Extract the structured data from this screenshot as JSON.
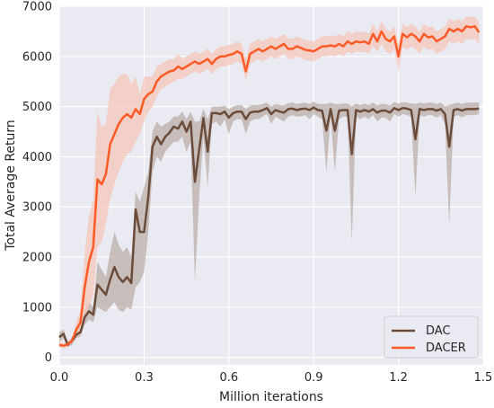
{
  "chart_data": {
    "type": "line",
    "xlabel": "Million iterations",
    "ylabel": "Total Average Return",
    "xlim": [
      0,
      1.5
    ],
    "ylim": [
      -150,
      7000
    ],
    "xticks": [
      "0.0",
      "0.3",
      "0.6",
      "0.9",
      "1.2",
      "1.5"
    ],
    "yticks": [
      "0",
      "1000",
      "2000",
      "3000",
      "4000",
      "5000",
      "6000",
      "7000"
    ],
    "grid": true,
    "legend_position": "bottom-right",
    "background": "#eaeaf2",
    "series": [
      {
        "name": "DAC",
        "color": "#6b4c3b",
        "band_color": "#b8a9a4",
        "x": [
          0.0,
          0.015,
          0.03,
          0.045,
          0.06,
          0.075,
          0.09,
          0.105,
          0.12,
          0.135,
          0.15,
          0.165,
          0.18,
          0.195,
          0.21,
          0.225,
          0.24,
          0.255,
          0.27,
          0.285,
          0.3,
          0.315,
          0.33,
          0.345,
          0.36,
          0.375,
          0.39,
          0.405,
          0.42,
          0.435,
          0.45,
          0.465,
          0.48,
          0.495,
          0.51,
          0.525,
          0.54,
          0.555,
          0.57,
          0.585,
          0.6,
          0.615,
          0.63,
          0.645,
          0.66,
          0.675,
          0.69,
          0.705,
          0.72,
          0.735,
          0.75,
          0.765,
          0.78,
          0.795,
          0.81,
          0.825,
          0.84,
          0.855,
          0.87,
          0.885,
          0.9,
          0.915,
          0.93,
          0.945,
          0.96,
          0.975,
          0.99,
          1.005,
          1.02,
          1.035,
          1.05,
          1.065,
          1.08,
          1.095,
          1.11,
          1.125,
          1.14,
          1.155,
          1.17,
          1.185,
          1.2,
          1.215,
          1.23,
          1.245,
          1.26,
          1.275,
          1.29,
          1.305,
          1.32,
          1.335,
          1.35,
          1.365,
          1.38,
          1.395,
          1.41,
          1.425,
          1.44,
          1.455,
          1.47,
          1.485
        ],
        "values": [
          400,
          470,
          250,
          330,
          450,
          500,
          800,
          920,
          850,
          1450,
          1350,
          1250,
          1550,
          1800,
          1600,
          1500,
          1600,
          1480,
          2950,
          2500,
          2500,
          3200,
          4200,
          4400,
          4250,
          4400,
          4480,
          4600,
          4560,
          4700,
          4500,
          4700,
          3500,
          4150,
          4770,
          4100,
          4870,
          4870,
          4850,
          4900,
          4780,
          4870,
          4900,
          4900,
          4750,
          4880,
          4900,
          4900,
          4930,
          4970,
          4850,
          4930,
          4900,
          4880,
          4950,
          4960,
          4930,
          4950,
          4960,
          4930,
          4980,
          4930,
          4920,
          4520,
          4950,
          4520,
          4920,
          4930,
          4930,
          4050,
          4930,
          4900,
          4930,
          4900,
          4950,
          4880,
          4920,
          4920,
          4880,
          4970,
          4930,
          4970,
          4960,
          4930,
          4350,
          4950,
          4930,
          4950,
          4950,
          4920,
          4950,
          4850,
          4200,
          4930,
          4950,
          4920,
          4950,
          4950,
          4950,
          4960
        ],
        "lower": [
          300,
          380,
          200,
          250,
          380,
          420,
          650,
          750,
          700,
          1000,
          950,
          900,
          1000,
          1100,
          950,
          900,
          1000,
          950,
          1400,
          1500,
          1700,
          2500,
          3700,
          4000,
          3900,
          4100,
          4200,
          4300,
          4300,
          4400,
          4100,
          4300,
          1500,
          3200,
          4400,
          3400,
          4650,
          4700,
          4600,
          4750,
          4450,
          4700,
          4750,
          4750,
          4450,
          4700,
          4750,
          4750,
          4800,
          4850,
          4650,
          4800,
          4750,
          4700,
          4800,
          4830,
          4800,
          4800,
          4830,
          4750,
          4850,
          4800,
          4750,
          3700,
          4800,
          3700,
          4750,
          4800,
          4800,
          2300,
          4800,
          4750,
          4800,
          4750,
          4830,
          4700,
          4780,
          4780,
          4700,
          4850,
          4800,
          4850,
          4830,
          4800,
          3200,
          4830,
          4800,
          4830,
          4830,
          4780,
          4830,
          4650,
          2650,
          4800,
          4830,
          4780,
          4830,
          4830,
          4830,
          4850
        ],
        "upper": [
          500,
          560,
          300,
          410,
          520,
          580,
          950,
          1100,
          1000,
          1900,
          1750,
          1600,
          2100,
          2500,
          2250,
          2100,
          2200,
          2000,
          3300,
          3100,
          3400,
          3700,
          4500,
          4700,
          4600,
          4650,
          4700,
          4800,
          4800,
          4900,
          4750,
          4900,
          4700,
          4700,
          4950,
          4750,
          5000,
          5000,
          5000,
          5020,
          4950,
          5000,
          5030,
          5030,
          4950,
          5020,
          5030,
          5030,
          5050,
          5080,
          5000,
          5050,
          5030,
          5020,
          5070,
          5080,
          5050,
          5070,
          5080,
          5050,
          5100,
          5050,
          5050,
          5050,
          5080,
          5050,
          5050,
          5060,
          5060,
          5000,
          5060,
          5030,
          5060,
          5030,
          5080,
          5020,
          5050,
          5050,
          5020,
          5090,
          5060,
          5090,
          5080,
          5060,
          5050,
          5080,
          5060,
          5080,
          5080,
          5050,
          5080,
          5000,
          5030,
          5060,
          5080,
          5050,
          5080,
          5080,
          5080,
          5080
        ]
      },
      {
        "name": "DACER",
        "color": "#fc5a27",
        "band_color": "#f5c4b6",
        "x": [
          0.0,
          0.015,
          0.03,
          0.045,
          0.06,
          0.075,
          0.09,
          0.105,
          0.12,
          0.135,
          0.15,
          0.165,
          0.18,
          0.195,
          0.21,
          0.225,
          0.24,
          0.255,
          0.27,
          0.285,
          0.3,
          0.315,
          0.33,
          0.345,
          0.36,
          0.375,
          0.39,
          0.405,
          0.42,
          0.435,
          0.45,
          0.465,
          0.48,
          0.495,
          0.51,
          0.525,
          0.54,
          0.555,
          0.57,
          0.585,
          0.6,
          0.615,
          0.63,
          0.645,
          0.66,
          0.675,
          0.69,
          0.705,
          0.72,
          0.735,
          0.75,
          0.765,
          0.78,
          0.795,
          0.81,
          0.825,
          0.84,
          0.855,
          0.87,
          0.885,
          0.9,
          0.915,
          0.93,
          0.945,
          0.96,
          0.975,
          0.99,
          1.005,
          1.02,
          1.035,
          1.05,
          1.065,
          1.08,
          1.095,
          1.11,
          1.125,
          1.14,
          1.155,
          1.17,
          1.185,
          1.2,
          1.215,
          1.23,
          1.245,
          1.26,
          1.275,
          1.29,
          1.305,
          1.32,
          1.335,
          1.35,
          1.365,
          1.38,
          1.395,
          1.41,
          1.425,
          1.44,
          1.455,
          1.47,
          1.485
        ],
        "values": [
          250,
          230,
          260,
          330,
          550,
          700,
          1400,
          1900,
          2200,
          3550,
          3450,
          3650,
          4250,
          4450,
          4650,
          4780,
          4850,
          4780,
          4950,
          4850,
          5150,
          5250,
          5300,
          5500,
          5600,
          5650,
          5700,
          5720,
          5800,
          5750,
          5800,
          5850,
          5900,
          5850,
          5900,
          5950,
          5850,
          5950,
          6000,
          6000,
          6030,
          6050,
          6100,
          6050,
          5700,
          6050,
          6100,
          6150,
          6100,
          6150,
          6200,
          6150,
          6200,
          6250,
          6150,
          6150,
          6200,
          6170,
          6130,
          6120,
          6100,
          6150,
          6200,
          6200,
          6220,
          6200,
          6250,
          6200,
          6300,
          6250,
          6300,
          6280,
          6300,
          6250,
          6450,
          6300,
          6500,
          6350,
          6300,
          6400,
          6000,
          6450,
          6380,
          6450,
          6400,
          6300,
          6450,
          6380,
          6400,
          6300,
          6350,
          6400,
          6550,
          6500,
          6550,
          6500,
          6600,
          6580,
          6600,
          6480
        ],
        "lower": [
          200,
          180,
          210,
          280,
          400,
          450,
          700,
          1000,
          1250,
          2200,
          2300,
          2650,
          3150,
          3450,
          3700,
          3900,
          4050,
          4100,
          4300,
          4450,
          4700,
          4900,
          5000,
          5200,
          5350,
          5400,
          5450,
          5500,
          5550,
          5550,
          5600,
          5650,
          5700,
          5650,
          5700,
          5750,
          5650,
          5750,
          5800,
          5800,
          5830,
          5850,
          5900,
          5850,
          5500,
          5850,
          5900,
          5950,
          5900,
          5950,
          6000,
          5950,
          6000,
          6050,
          5950,
          5950,
          6000,
          5970,
          5930,
          5920,
          5900,
          5950,
          6000,
          6000,
          6020,
          6000,
          6050,
          6000,
          6100,
          6050,
          6100,
          6080,
          6100,
          6050,
          6200,
          6100,
          6250,
          6100,
          6050,
          6150,
          5700,
          6200,
          6130,
          6200,
          6150,
          6050,
          6200,
          6130,
          6150,
          6050,
          6100,
          6150,
          6300,
          6250,
          6300,
          6250,
          6350,
          6330,
          6350,
          6230
        ],
        "upper": [
          300,
          280,
          310,
          380,
          700,
          950,
          2100,
          2800,
          3150,
          4900,
          4600,
          4650,
          5350,
          5450,
          5600,
          5650,
          5650,
          5450,
          5600,
          5250,
          5600,
          5600,
          5600,
          5800,
          5850,
          5900,
          5950,
          5940,
          6050,
          5950,
          6000,
          6050,
          6100,
          6050,
          6100,
          6150,
          6050,
          6150,
          6200,
          6200,
          6230,
          6250,
          6300,
          6250,
          5950,
          6250,
          6300,
          6350,
          6300,
          6350,
          6400,
          6350,
          6400,
          6450,
          6350,
          6350,
          6400,
          6370,
          6330,
          6320,
          6300,
          6350,
          6400,
          6400,
          6420,
          6400,
          6450,
          6400,
          6500,
          6450,
          6500,
          6480,
          6500,
          6450,
          6650,
          6500,
          6700,
          6550,
          6500,
          6600,
          6250,
          6650,
          6580,
          6650,
          6600,
          6500,
          6650,
          6580,
          6600,
          6500,
          6550,
          6600,
          6750,
          6700,
          6750,
          6700,
          6800,
          6780,
          6800,
          6680
        ]
      }
    ]
  }
}
